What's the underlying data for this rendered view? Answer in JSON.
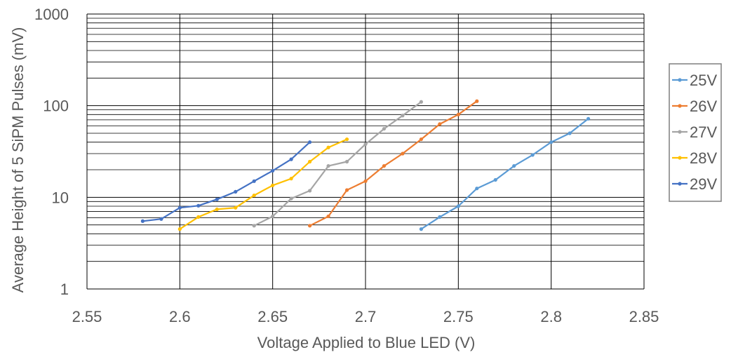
{
  "chart_data": {
    "type": "line",
    "title": "",
    "xlabel": "Voltage Applied to Blue LED (V)",
    "ylabel": "Average Height of 5 SiPM Pulses (mV)",
    "xlim": [
      2.55,
      2.85
    ],
    "ylim": [
      1,
      1000
    ],
    "yscale": "log",
    "grid": "major and minor horizontal, major vertical",
    "legend_position": "right",
    "x_ticks": [
      "2.55",
      "2.6",
      "2.65",
      "2.7",
      "2.75",
      "2.8",
      "2.85"
    ],
    "y_ticks": [
      "1",
      "10",
      "100",
      "1000"
    ],
    "series": [
      {
        "name": "25V",
        "color": "#5B9BD5",
        "x": [
          2.73,
          2.74,
          2.75,
          2.76,
          2.77,
          2.78,
          2.79,
          2.8,
          2.81,
          2.82
        ],
        "y": [
          4.5,
          6.1,
          8.0,
          12.5,
          15.5,
          22,
          29,
          40,
          50,
          72
        ]
      },
      {
        "name": "26V",
        "color": "#ED7D31",
        "x": [
          2.67,
          2.68,
          2.69,
          2.7,
          2.71,
          2.72,
          2.73,
          2.74,
          2.75,
          2.76
        ],
        "y": [
          4.9,
          6.2,
          12,
          15,
          22,
          30,
          43,
          63,
          80,
          112
        ]
      },
      {
        "name": "27V",
        "color": "#A5A5A5",
        "x": [
          2.64,
          2.65,
          2.66,
          2.67,
          2.68,
          2.69,
          2.7,
          2.71,
          2.72,
          2.73
        ],
        "y": [
          4.9,
          6.2,
          9.7,
          11.8,
          22,
          24.5,
          38,
          56,
          78,
          110
        ]
      },
      {
        "name": "28V",
        "color": "#FFC000",
        "x": [
          2.6,
          2.61,
          2.62,
          2.63,
          2.64,
          2.65,
          2.66,
          2.67,
          2.68,
          2.69
        ],
        "y": [
          4.5,
          6.1,
          7.4,
          7.7,
          10.5,
          13.5,
          16,
          24.5,
          35,
          43
        ]
      },
      {
        "name": "29V",
        "color": "#4472C4",
        "x": [
          2.58,
          2.59,
          2.6,
          2.61,
          2.62,
          2.63,
          2.64,
          2.65,
          2.66,
          2.67
        ],
        "y": [
          5.5,
          5.8,
          7.7,
          8.1,
          9.5,
          11.5,
          15,
          19.5,
          26,
          40
        ]
      }
    ]
  }
}
